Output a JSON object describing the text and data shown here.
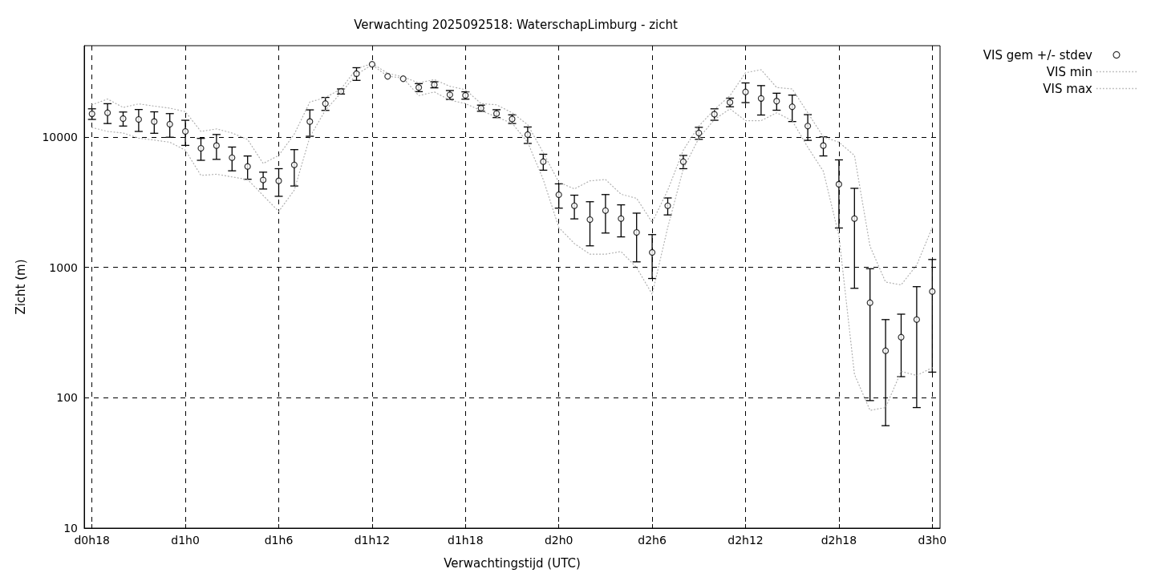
{
  "chart_data": {
    "type": "scatter",
    "title": "Verwachting 2025092518: WaterschapLimburg - zicht",
    "xlabel": "Verwachtingstijd (UTC)",
    "ylabel": "Zicht (m)",
    "categories": [
      "d0h18",
      null,
      null,
      null,
      null,
      null,
      "d1h0",
      null,
      null,
      null,
      null,
      null,
      "d1h6",
      null,
      null,
      null,
      null,
      null,
      "d1h12",
      null,
      null,
      null,
      null,
      null,
      "d1h18",
      null,
      null,
      null,
      null,
      null,
      "d2h0",
      null,
      null,
      null,
      null,
      null,
      "d2h6",
      null,
      null,
      null,
      null,
      null,
      "d2h12",
      null,
      null,
      null,
      null,
      null,
      "d2h18",
      null,
      null,
      null,
      null,
      null,
      "d3h0"
    ],
    "ylim": [
      10,
      50000
    ],
    "yticks": [
      10,
      100,
      1000,
      10000
    ],
    "log": "y",
    "grid": true,
    "legend": "top right",
    "series": [
      {
        "name": "VIS gem +/- stdev",
        "marker": "circle",
        "color": "#000000",
        "values": [
          15000,
          15300,
          13800,
          13600,
          13100,
          12500,
          11000,
          8170,
          8570,
          6920,
          5930,
          4670,
          4600,
          6090,
          13100,
          18000,
          22300,
          30500,
          36000,
          29100,
          27900,
          23900,
          25100,
          21000,
          20800,
          16600,
          15100,
          13700,
          10400,
          6450,
          3600,
          2960,
          2320,
          2720,
          2360,
          1850,
          1300,
          2960,
          6450,
          10700,
          14900,
          18400,
          22100,
          19700,
          18800,
          17000,
          12100,
          8570,
          4330,
          2360,
          535,
          229,
          291,
          397,
          652
        ],
        "errors": [
          1400,
          2650,
          1700,
          2600,
          2450,
          2570,
          2400,
          1560,
          1850,
          1430,
          1200,
          690,
          1100,
          1890,
          3000,
          2050,
          1000,
          3400,
          null,
          null,
          null,
          1700,
          1350,
          1650,
          1350,
          900,
          1050,
          1050,
          1500,
          900,
          760,
          610,
          860,
          890,
          650,
          750,
          480,
          440,
          750,
          1130,
          1500,
          1400,
          3800,
          5000,
          2800,
          3900,
          2700,
          1430,
          2330,
          1670,
          440,
          168,
          146,
          313,
          495
        ]
      },
      {
        "name": "VIS min",
        "type": "line",
        "marker": "none",
        "line_style": "dotted",
        "color": "#b0b0b0",
        "values": [
          11800,
          11000,
          10700,
          9770,
          9440,
          9100,
          7900,
          5060,
          5170,
          4930,
          4710,
          3550,
          2680,
          3900,
          10000,
          16000,
          21700,
          30200,
          35600,
          29200,
          28200,
          20700,
          22100,
          19100,
          18000,
          15900,
          14200,
          12700,
          9100,
          4710,
          2020,
          1520,
          1260,
          1260,
          1320,
          995,
          621,
          2020,
          5690,
          9770,
          13600,
          16400,
          13300,
          13300,
          15300,
          13300,
          8320,
          5450,
          1750,
          151,
          80,
          84,
          159,
          148,
          170
        ]
      },
      {
        "name": "VIS max",
        "type": "line",
        "marker": "none",
        "line_style": "dotted",
        "color": "#b0b0b0",
        "values": [
          17600,
          19500,
          16800,
          17900,
          17200,
          16600,
          15600,
          11000,
          11500,
          10700,
          9550,
          6250,
          7200,
          10500,
          18500,
          20000,
          23300,
          33200,
          36500,
          30700,
          28800,
          25900,
          27500,
          24400,
          23000,
          18000,
          17600,
          15300,
          12400,
          7550,
          4490,
          3990,
          4600,
          4710,
          3630,
          3380,
          2210,
          3900,
          7910,
          12100,
          16200,
          20700,
          31000,
          32700,
          23900,
          23300,
          15300,
          10000,
          9100,
          7200,
          1450,
          770,
          733,
          1040,
          2020
        ]
      }
    ]
  }
}
